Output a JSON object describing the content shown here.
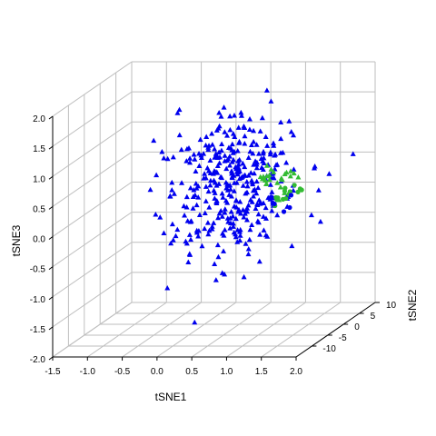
{
  "chart_data": {
    "type": "scatter3d",
    "axes": {
      "x": {
        "label": "tSNE1",
        "range": [
          -1.5,
          2.0
        ],
        "ticks": [
          "-1.5",
          "-1.0",
          "-0.5",
          "0.0",
          "0.5",
          "1.0",
          "1.5",
          "2.0"
        ]
      },
      "y": {
        "label": "tSNE2",
        "range": [
          -15,
          10
        ],
        "ticks": [
          "-10",
          "-5",
          "0",
          "5",
          "10"
        ]
      },
      "z": {
        "label": "tSNE3",
        "range": [
          -2.0,
          2.0
        ],
        "ticks": [
          "-2.0",
          "-1.5",
          "-1.0",
          "-0.5",
          "0.0",
          "0.5",
          "1.0",
          "1.5",
          "2.0"
        ]
      }
    },
    "grid": true,
    "legend": "none",
    "series": [
      {
        "marker": "triangle",
        "color": "#0000ee",
        "n_points": 380,
        "x_mean": 0.35,
        "x_sd": 0.42,
        "y_mean": 2,
        "y_sd": 6,
        "z_mean": 0.2,
        "z_sd": 0.55
      },
      {
        "marker": "triangle",
        "color": "#33bb33",
        "n_points": 26,
        "x_mean": 0.9,
        "x_sd": 0.12,
        "y_mean": 3,
        "y_sd": 1.5,
        "z_mean": 0.3,
        "z_sd": 0.08
      },
      {
        "marker": "circle",
        "color": "#33bb33",
        "n_points": 14,
        "x_mean": 1.1,
        "x_sd": 0.12,
        "y_mean": 2,
        "y_sd": 1.5,
        "z_mean": 0.1,
        "z_sd": 0.08
      },
      {
        "marker": "circle",
        "color": "#0000ee",
        "n_points": 6,
        "x_mean": 1.1,
        "x_sd": 0.18,
        "y_mean": 0,
        "y_sd": 2,
        "z_mean": -0.05,
        "z_sd": 0.12
      }
    ]
  }
}
